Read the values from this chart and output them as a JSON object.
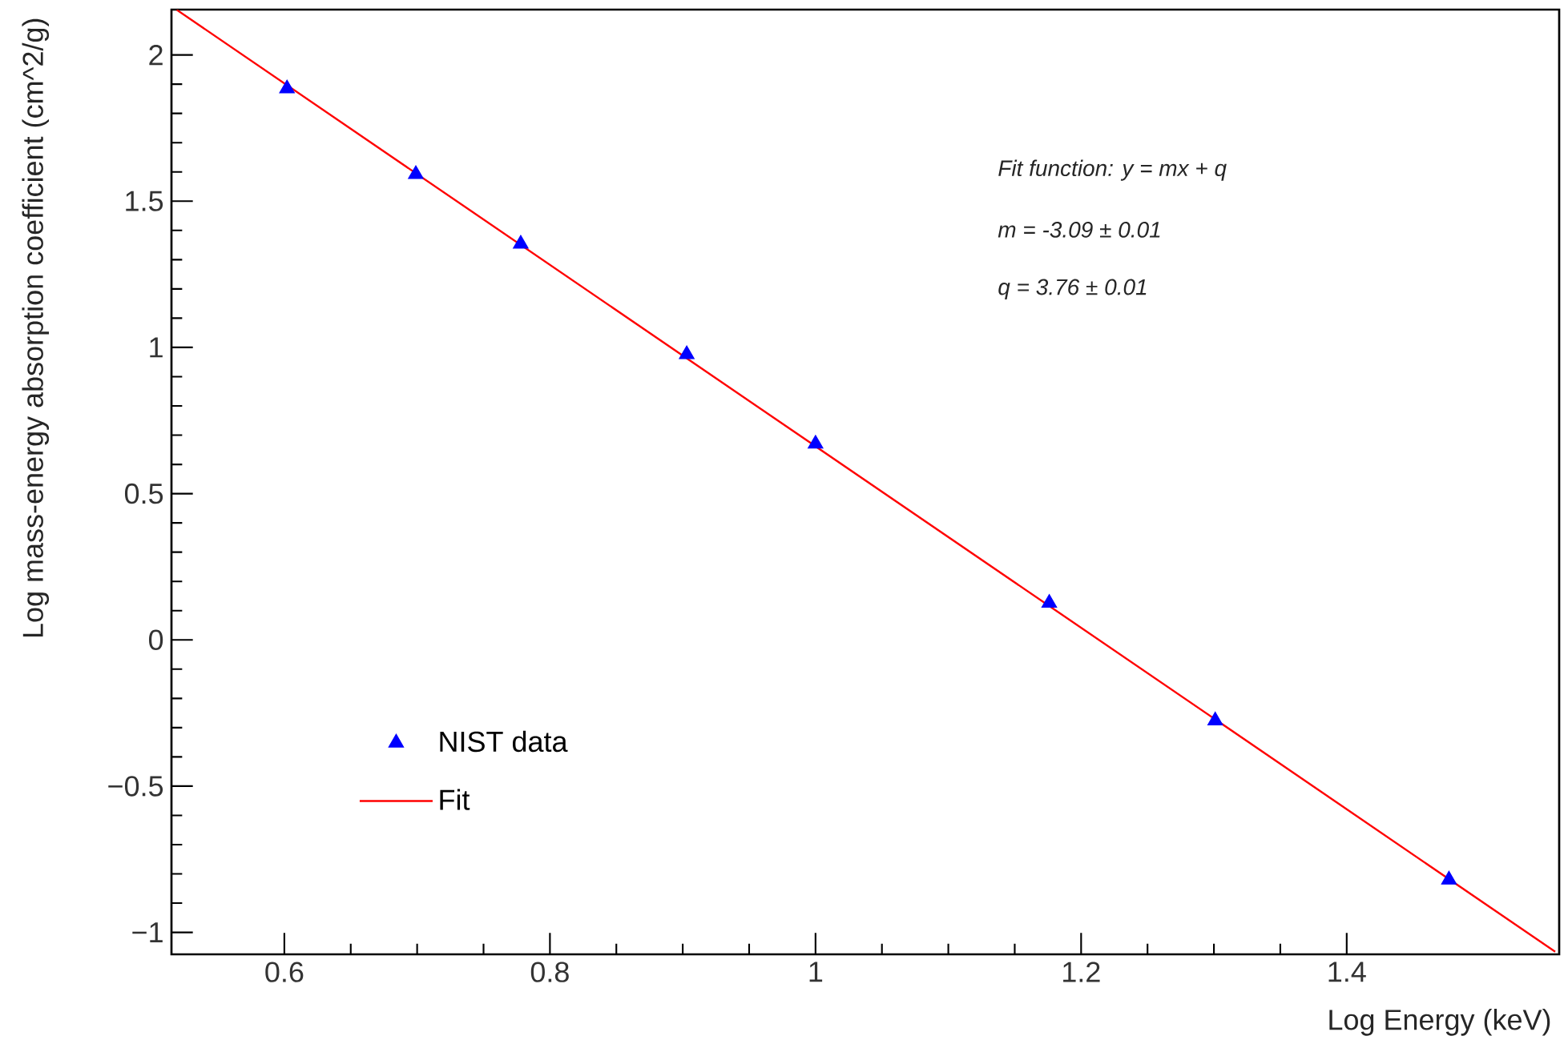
{
  "chart_data": {
    "type": "scatter",
    "xlabel": "Log Energy (keV)",
    "ylabel": "Log mass-energy absorption coefficient (cm^2/g)",
    "xlim": [
      0.515,
      1.56
    ],
    "ylim": [
      -1.075,
      2.155
    ],
    "xticks": [
      0.6,
      0.8,
      1,
      1.2,
      1.4
    ],
    "yticks": [
      {
        "value": -1,
        "label": "−1"
      },
      {
        "value": -0.5,
        "label": "−0.5"
      },
      0,
      0.5,
      1,
      1.5,
      2
    ],
    "series": [
      {
        "name": "NIST data",
        "color": "#0000ff",
        "marker": "triangle",
        "x": [
          0.602,
          0.699,
          0.778,
          0.903,
          1.0,
          1.176,
          1.301,
          1.477
        ],
        "values": [
          1.885,
          1.592,
          1.354,
          0.976,
          0.67,
          0.126,
          -0.276,
          -0.82
        ]
      },
      {
        "name": "Fit",
        "type": "line",
        "color": "#ff0000",
        "x": [
          0.519,
          1.557
        ],
        "values": [
          2.154,
          -1.066
        ]
      }
    ],
    "legend": "bottom left",
    "annotations": [
      "*Fit function: y = mx + q*",
      "*m = -3.09 ± 0.01*",
      "*q = 3.76 ± 0.01*"
    ]
  }
}
